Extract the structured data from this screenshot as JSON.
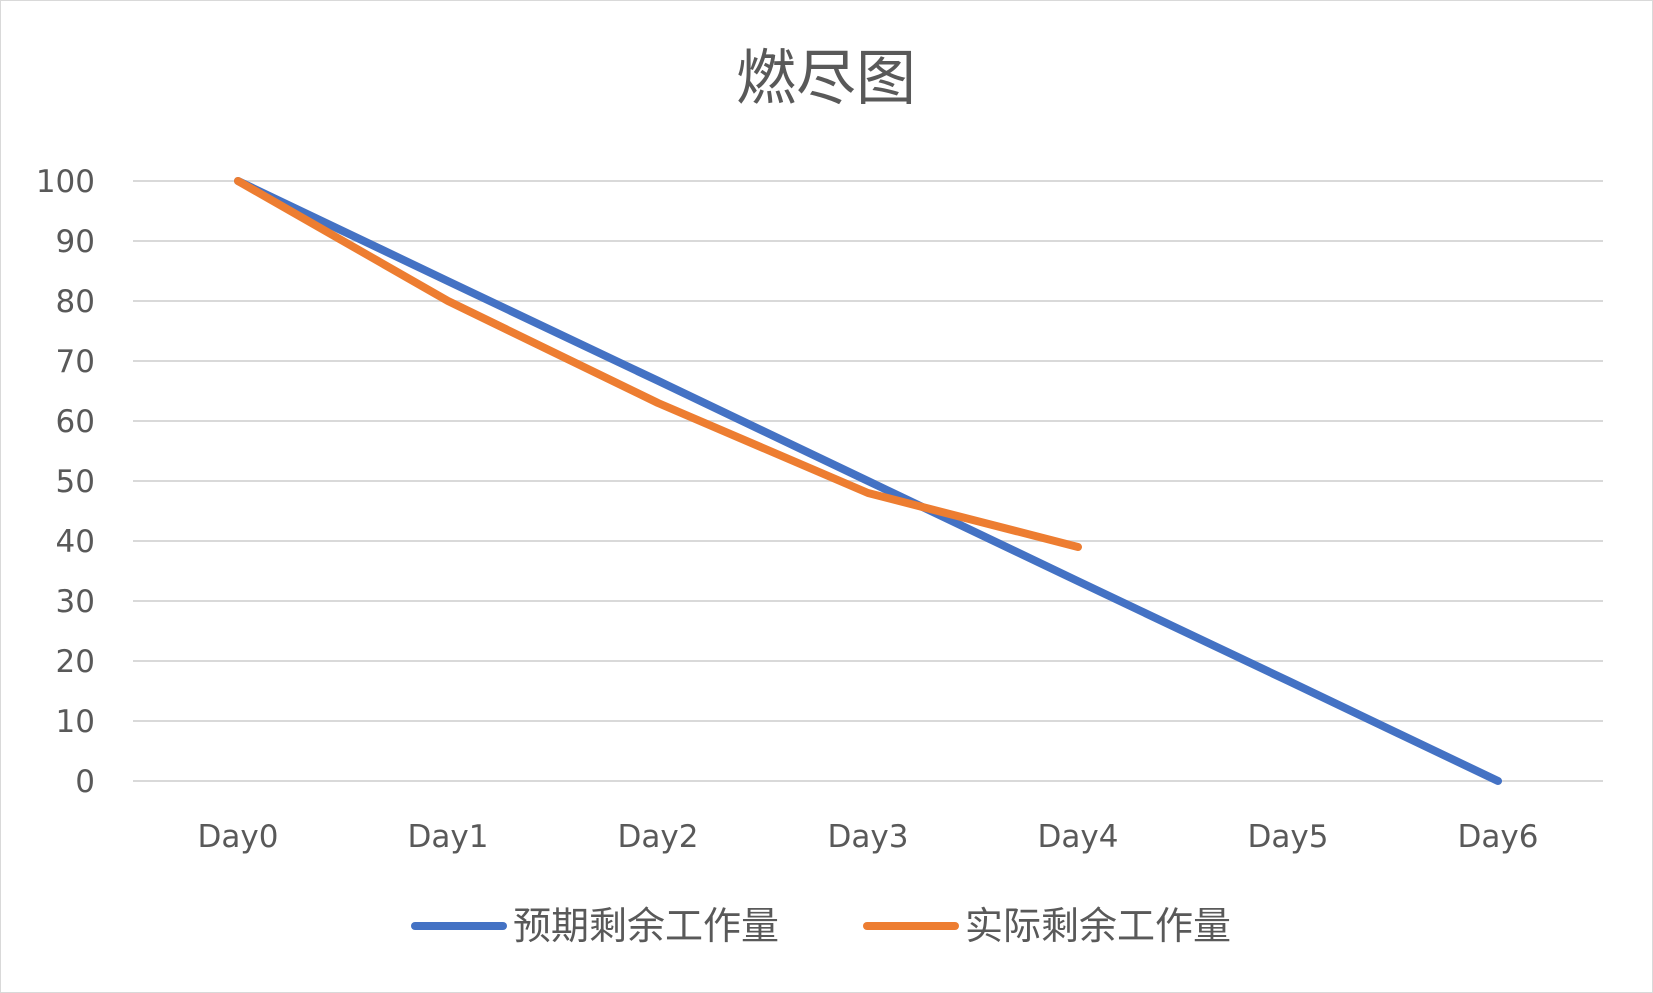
{
  "chart_data": {
    "type": "line",
    "title": "燃尽图",
    "xlabel": "",
    "ylabel": "",
    "categories": [
      "Day0",
      "Day1",
      "Day2",
      "Day3",
      "Day4",
      "Day5",
      "Day6"
    ],
    "ylim": [
      0,
      100
    ],
    "yticks": [
      "0",
      "10",
      "20",
      "30",
      "40",
      "50",
      "60",
      "70",
      "80",
      "90",
      "100"
    ],
    "grid": true,
    "legend_position": "bottom",
    "series": [
      {
        "name": "预期剩余工作量",
        "color": "#4472C4",
        "values": [
          100,
          83.3,
          66.7,
          50,
          33.3,
          16.7,
          0
        ]
      },
      {
        "name": "实际剩余工作量",
        "color": "#ED7D31",
        "values": [
          100,
          80,
          63,
          48,
          39,
          null,
          null
        ]
      }
    ]
  }
}
